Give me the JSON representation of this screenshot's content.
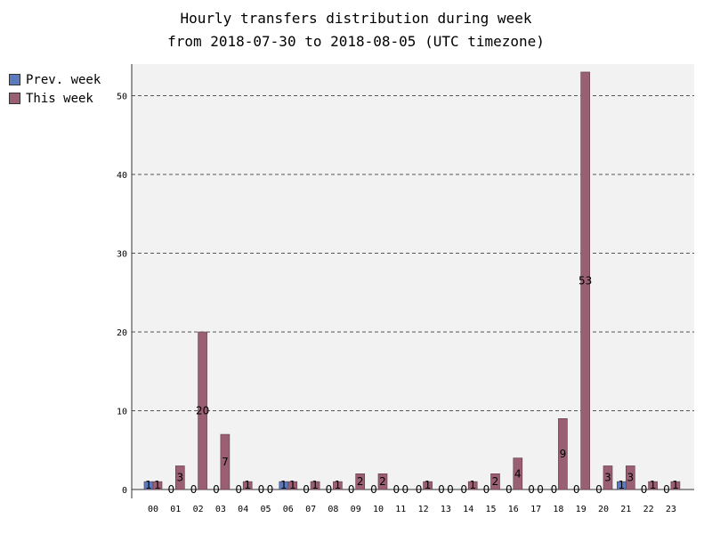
{
  "chart_data": {
    "type": "bar",
    "title": "Hourly transfers distribution during week",
    "subtitle": "from 2018-07-30 to 2018-08-05 (UTC timezone)",
    "xlabel": "",
    "ylabel": "",
    "ylim": [
      0,
      55
    ],
    "yticks": [
      0,
      10,
      20,
      30,
      40,
      50
    ],
    "grid": true,
    "legend_position": "left",
    "categories": [
      "00",
      "01",
      "02",
      "03",
      "04",
      "05",
      "06",
      "07",
      "08",
      "09",
      "10",
      "11",
      "12",
      "13",
      "14",
      "15",
      "16",
      "17",
      "18",
      "19",
      "20",
      "21",
      "22",
      "23"
    ],
    "series": [
      {
        "name": "Prev. week",
        "color": "#5b7bbe",
        "values": [
          1,
          0,
          0,
          0,
          0,
          0,
          1,
          0,
          0,
          0,
          0,
          0,
          0,
          0,
          0,
          0,
          0,
          0,
          0,
          0,
          0,
          1,
          0,
          0
        ]
      },
      {
        "name": "This week",
        "color": "#9b5f73",
        "values": [
          1,
          3,
          20,
          7,
          1,
          0,
          1,
          1,
          1,
          2,
          2,
          0,
          1,
          0,
          1,
          2,
          4,
          0,
          9,
          53,
          3,
          3,
          1,
          1
        ]
      }
    ]
  }
}
